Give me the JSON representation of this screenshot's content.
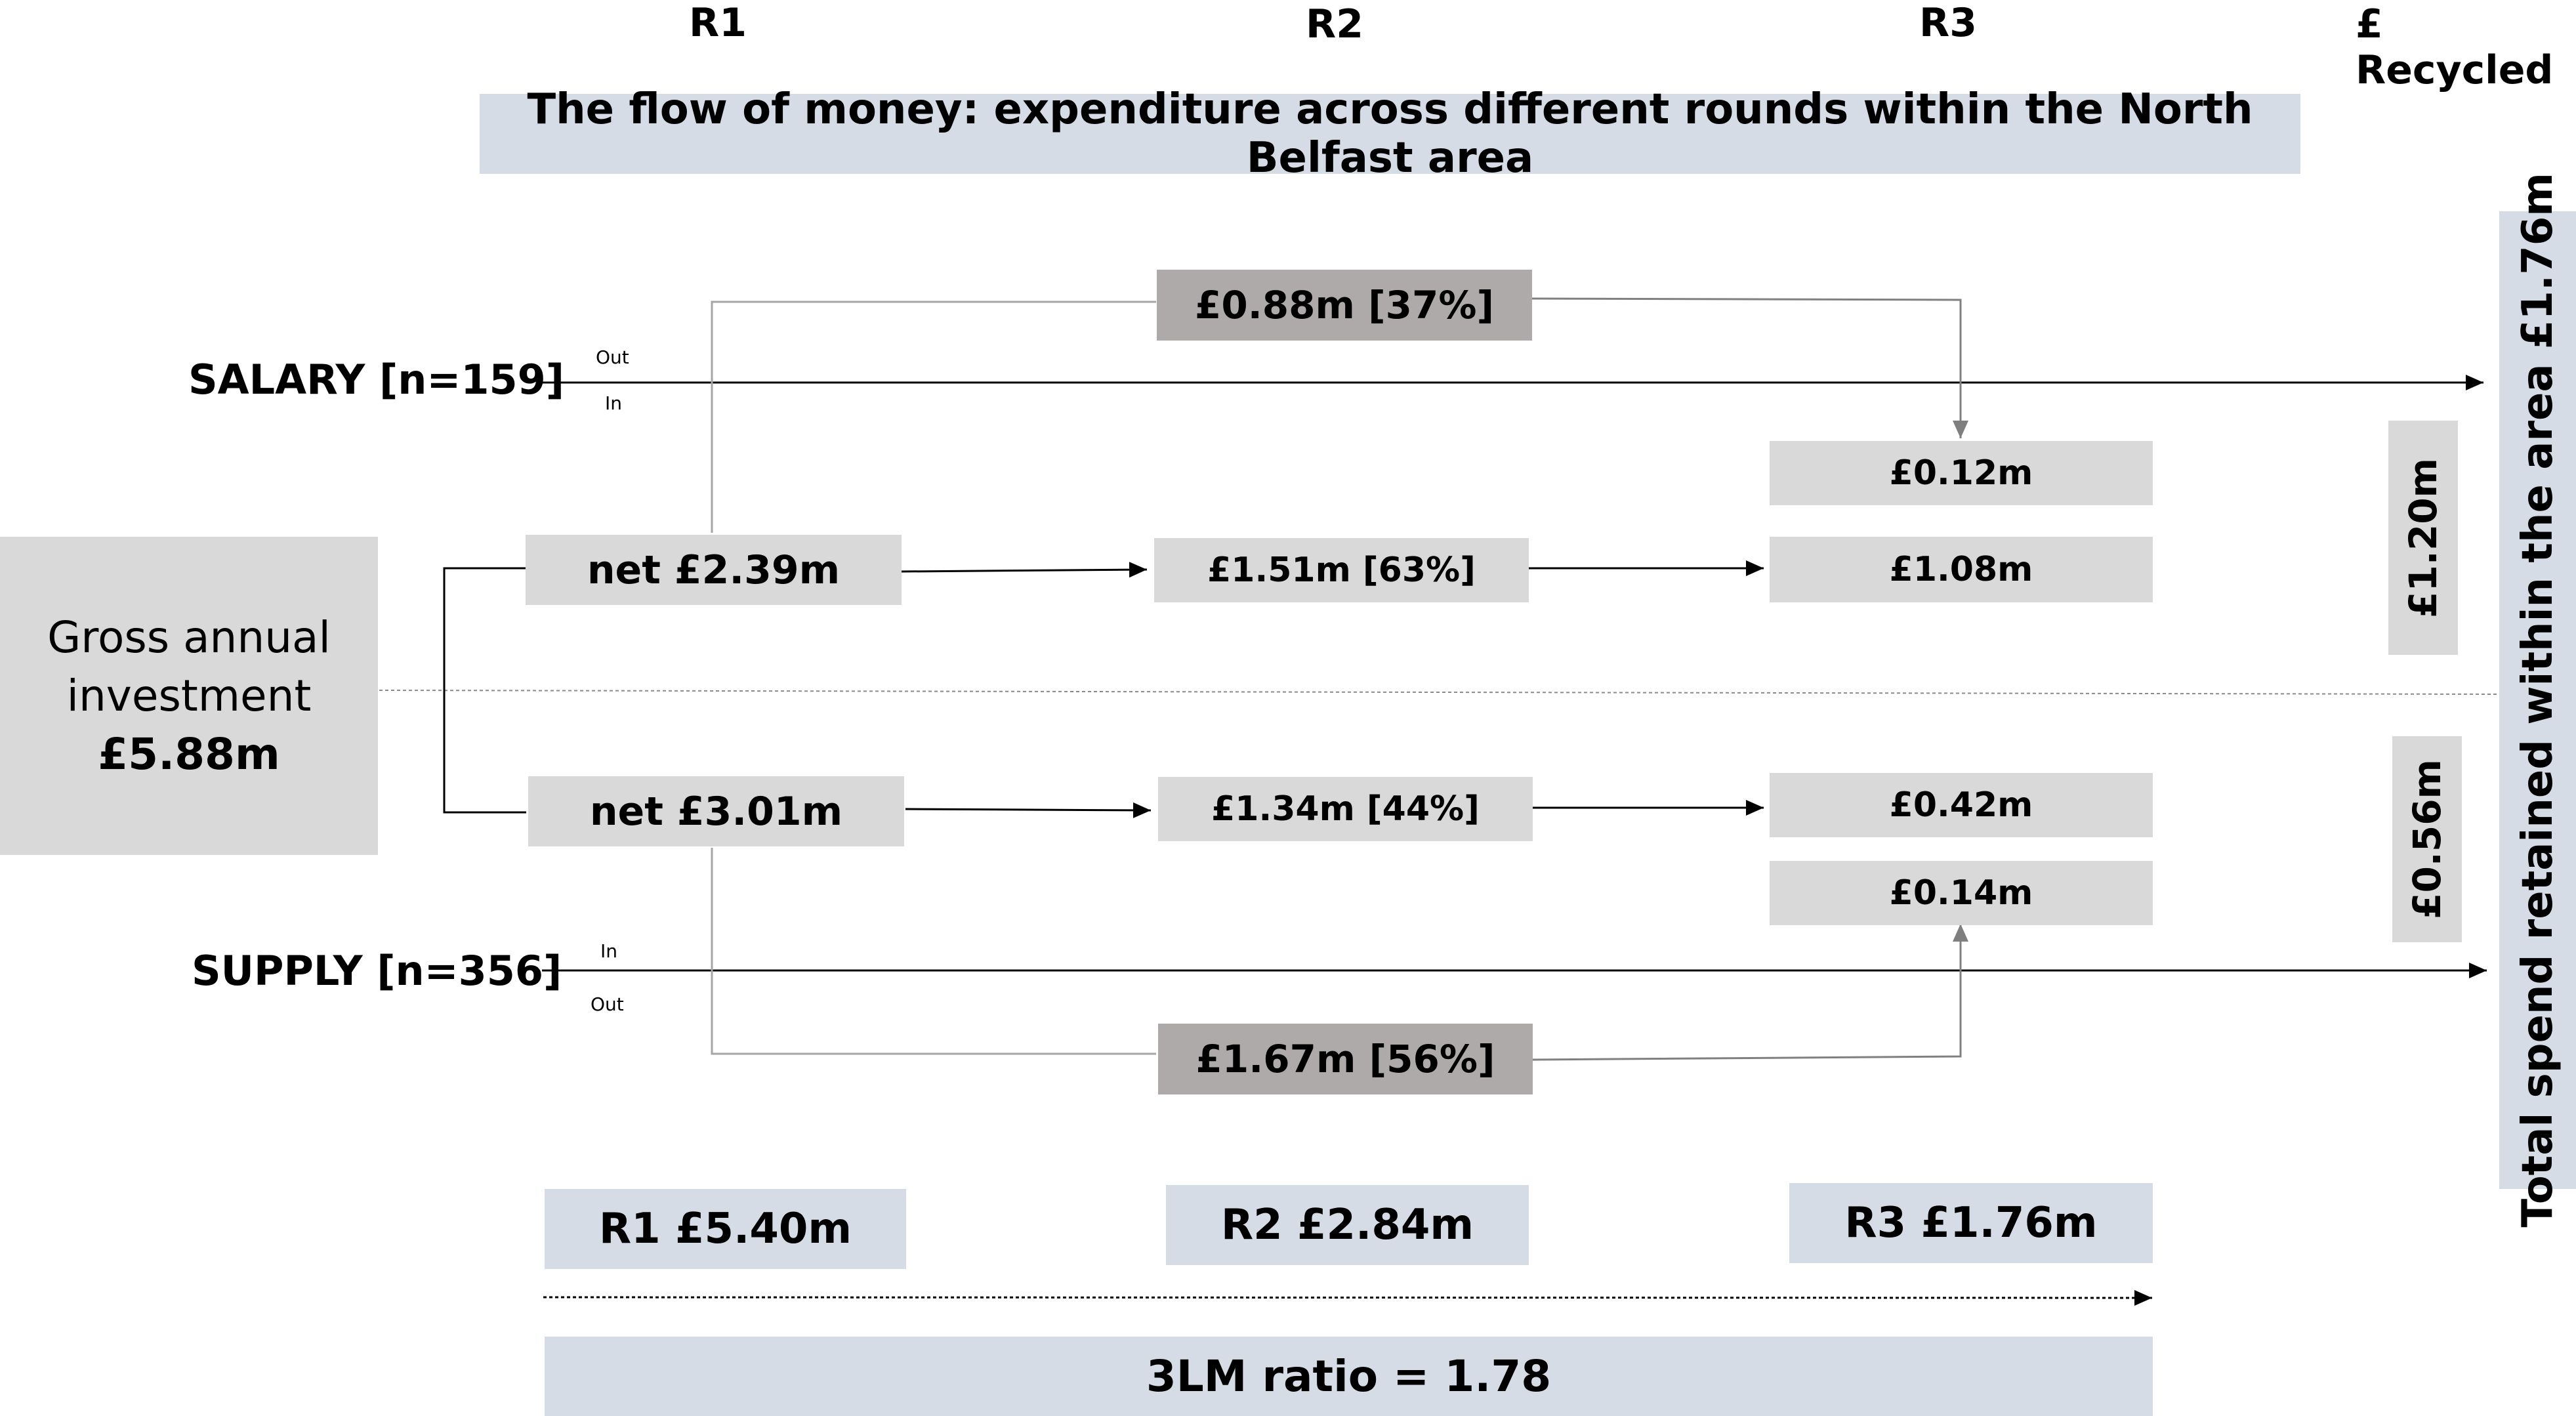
{
  "columns": {
    "r1": "R1",
    "r2": "R2",
    "r3": "R3",
    "recycled": "£ Recycled"
  },
  "title": "The flow of money: expenditure across different rounds within the North Belfast area",
  "gross": {
    "line1": "Gross annual",
    "line2": "investment",
    "value": "£5.88m"
  },
  "salary": {
    "label": "SALARY [n=159]",
    "out_label": "Out",
    "in_label": "In",
    "net": "net £2.39m",
    "leak_out": "£0.88m [37%]",
    "r2": "£1.51m [63%]",
    "r3_in": "£0.12m",
    "r3": "£1.08m",
    "recycled": "£1.20m"
  },
  "supply": {
    "label": "SUPPLY [n=356]",
    "in_label": "In",
    "out_label": "Out",
    "net": "net £3.01m",
    "leak_out": "£1.67m [56%]",
    "r2": "£1.34m [44%]",
    "r3": "£0.42m",
    "r3_in": "£0.14m",
    "recycled": "£0.56m"
  },
  "totals": {
    "r1": "R1 £5.40m",
    "r2": "R2 £2.84m",
    "r3": "R3 £1.76m"
  },
  "ratio": "3LM ratio = 1.78",
  "retained": "Total spend retained within the area £1.76m"
}
